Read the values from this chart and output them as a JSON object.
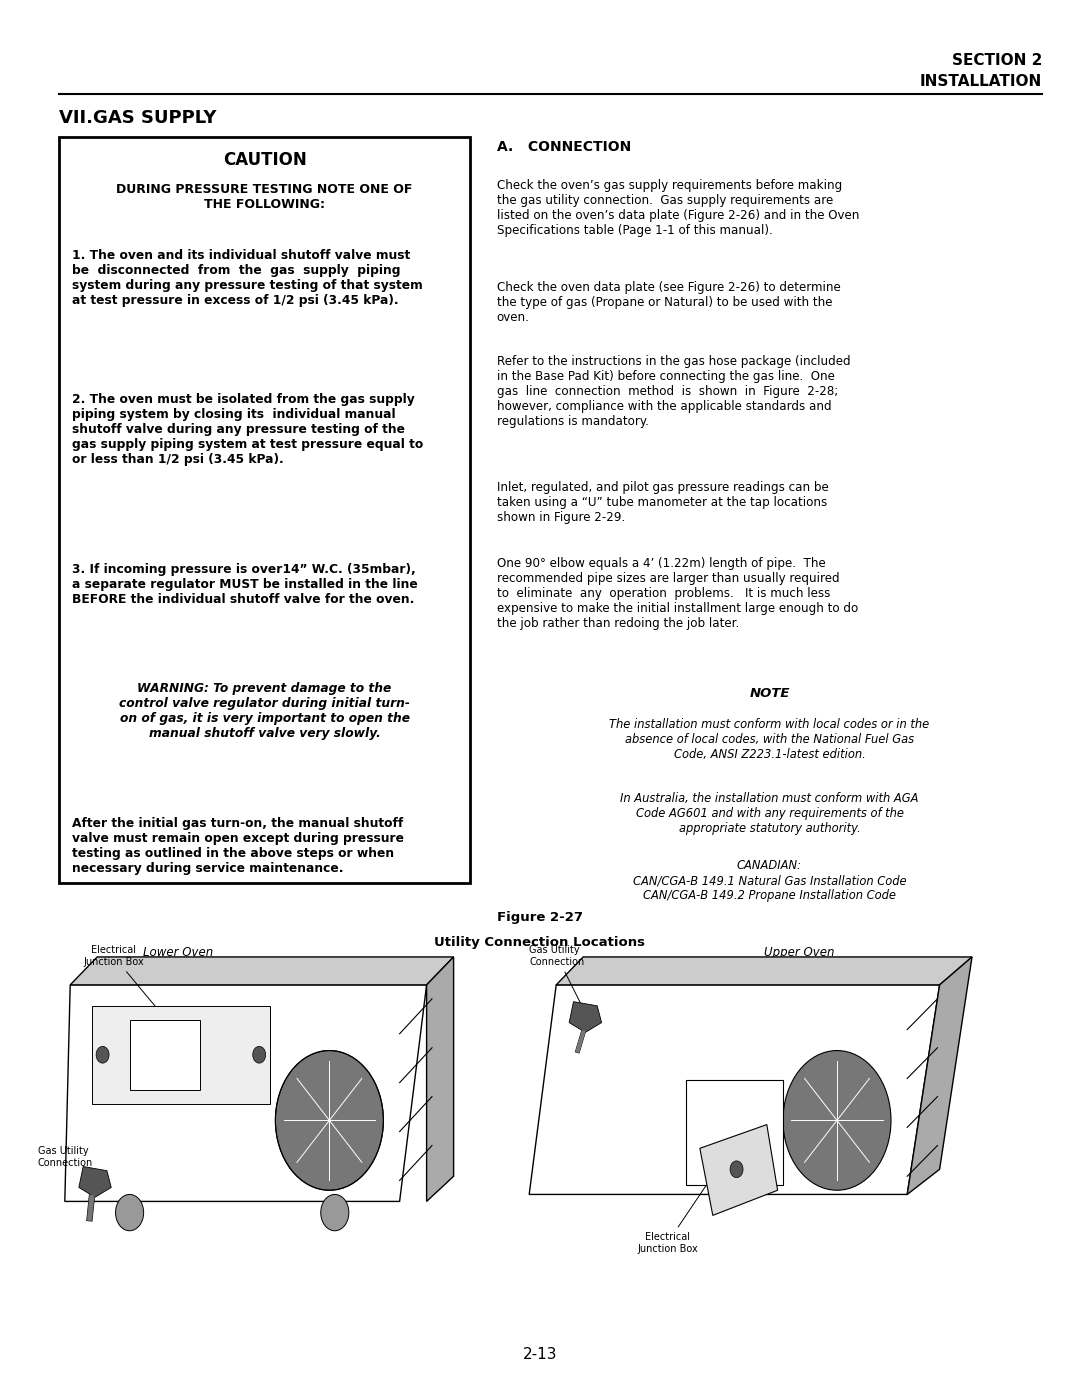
{
  "page_width": 10.8,
  "page_height": 13.97,
  "bg_color": "#ffffff",
  "header_right_line1": "SECTION 2",
  "header_right_line2": "INSTALLATION",
  "section_title": "VII.GAS SUPPLY",
  "caution_title": "CAUTION",
  "caution_subtitle": "DURING PRESSURE TESTING NOTE ONE OF\nTHE FOLLOWING:",
  "caution_p1": "1. The oven and its individual shutoff valve must\nbe  disconnected  from  the  gas  supply  piping\nsystem during any pressure testing of that system\nat test pressure in excess of 1/2 psi (3.45 kPa).",
  "caution_p2": "2. The oven must be isolated from the gas supply\npiping system by closing its  individual manual\nshutoff valve during any pressure testing of the\ngas supply piping system at test pressure equal to\nor less than 1/2 psi (3.45 kPa).",
  "caution_p3": "3. If incoming pressure is over14” W.C. (35mbar),\na separate regulator MUST be installed in the line\nBEFORE the individual shutoff valve for the oven.",
  "caution_warning": "WARNING: To prevent damage to the\ncontrol valve regulator during initial turn-\non of gas, it is very important to open the\nmanual shutoff valve very slowly.",
  "caution_p4": "After the initial gas turn-on, the manual shutoff\nvalve must remain open except during pressure\ntesting as outlined in the above steps or when\nnecessary during service maintenance.",
  "conn_title": "A.   CONNECTION",
  "conn_p1": "Check the oven’s gas supply requirements before making\nthe gas utility connection.  Gas supply requirements are\nlisted on the oven’s data plate (Figure 2-26) and in the Oven\nSpecifications table (Page 1-1 of this manual).",
  "conn_p2": "Check the oven data plate (see Figure 2-26) to determine\nthe type of gas (Propane or Natural) to be used with the\noven.",
  "conn_p3": "Refer to the instructions in the gas hose package (included\nin the Base Pad Kit) before connecting the gas line.  One\ngas  line  connection  method  is  shown  in  Figure  2-28;\nhowever, compliance with the applicable standards and\nregulations is mandatory.",
  "conn_p4": "Inlet, regulated, and pilot gas pressure readings can be\ntaken using a “U” tube manometer at the tap locations\nshown in Figure 2-29.",
  "conn_p5": "One 90° elbow equals a 4’ (1.22m) length of pipe.  The\nrecommended pipe sizes are larger than usually required\nto  eliminate  any  operation  problems.   It is much less\nexpensive to make the initial installment large enough to do\nthe job rather than redoing the job later.",
  "note_title": "NOTE",
  "note_p1": "The installation must conform with local codes or in the\nabsence of local codes, with the National Fuel Gas\nCode, ANSI Z223.1-latest edition.",
  "note_p2": "In Australia, the installation must conform with AGA\nCode AG601 and with any requirements of the\nappropriate statutory authority.",
  "note_p3": "CANADIAN:\nCAN/CGA-B 149.1 Natural Gas Installation Code\nCAN/CGA-B 149.2 Propane Installation Code",
  "fig_title": "Figure 2-27",
  "fig_subtitle": "Utility Connection Locations",
  "page_num": "2-13"
}
